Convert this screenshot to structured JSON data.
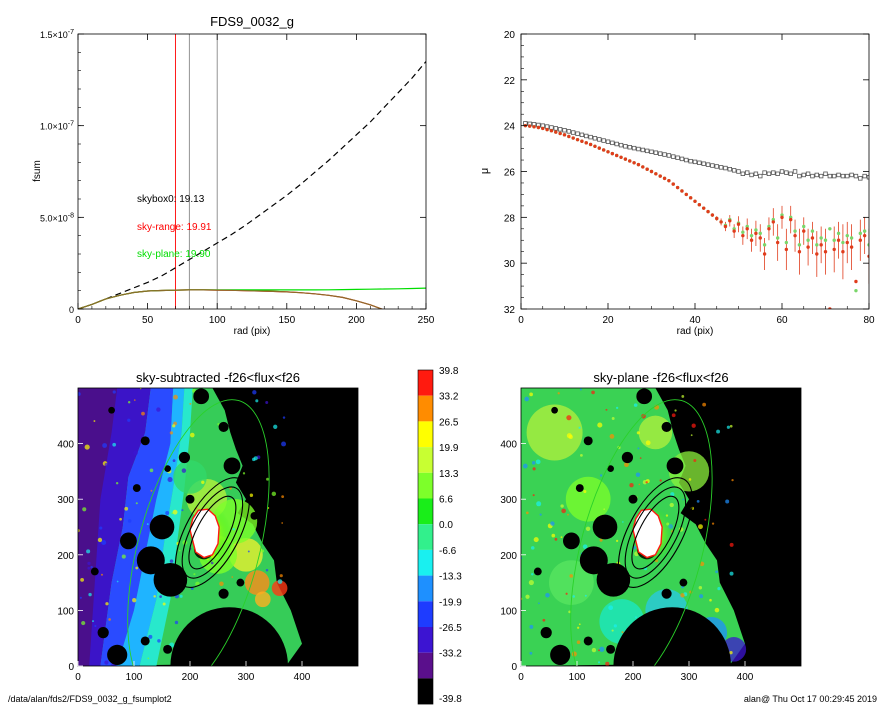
{
  "chart_data": [
    {
      "type": "line",
      "title": "FDS9_0032_g",
      "xlabel": "rad (pix)",
      "ylabel": "fsum",
      "xlim": [
        0,
        250
      ],
      "ylim": [
        0,
        1.5e-07
      ],
      "x_ticks": [
        "0",
        "50",
        "100",
        "150",
        "200",
        "250"
      ],
      "y_ticks": [
        {
          "label": "0",
          "value": 0
        },
        {
          "label": "5.0×10",
          "exp": "-8",
          "value": 5e-08
        },
        {
          "label": "1.0×10",
          "exp": "-7",
          "value": 1e-07
        },
        {
          "label": "1.5×10",
          "exp": "-7",
          "value": 1.5e-07
        }
      ],
      "annotations": [
        {
          "text": "skybox0: 19.13",
          "color": "#000000"
        },
        {
          "text": "sky-range: 19.91",
          "color": "#ff0000"
        },
        {
          "text": "sky-plane: 19.90",
          "color": "#00dd00"
        }
      ],
      "vertical_lines": [
        {
          "x": 70,
          "color": "#ff0000"
        },
        {
          "x": 80,
          "color": "#888888"
        },
        {
          "x": 100,
          "color": "#888888"
        }
      ],
      "series": [
        {
          "style": "dashed",
          "color": "#000000",
          "x": [
            0,
            10,
            20,
            30,
            40,
            50,
            60,
            70,
            80,
            90,
            100,
            110,
            120,
            130,
            140,
            150,
            160,
            170,
            180,
            190,
            200,
            210,
            220,
            230,
            240,
            250
          ],
          "y": [
            0,
            2.5e-09,
            5.5e-09,
            8.5e-09,
            1.15e-08,
            1.45e-08,
            1.8e-08,
            2.25e-08,
            2.7e-08,
            3.15e-08,
            3.6e-08,
            4.05e-08,
            4.55e-08,
            5.1e-08,
            5.65e-08,
            6.2e-08,
            6.8e-08,
            7.45e-08,
            8.1e-08,
            8.8e-08,
            9.5e-08,
            1.02e-07,
            1.1e-07,
            1.18e-07,
            1.26e-07,
            1.35e-07
          ]
        },
        {
          "style": "solid",
          "color": "#ff0000",
          "x": [
            0,
            10,
            20,
            30,
            40,
            50,
            60,
            70,
            80,
            90,
            100,
            110,
            120,
            130,
            140,
            150,
            160,
            170,
            180,
            190,
            200,
            210,
            220,
            225,
            230
          ],
          "y": [
            0,
            2.5e-09,
            5.5e-09,
            7.5e-09,
            9e-09,
            9.8e-09,
            1.01e-08,
            1.03e-08,
            1.04e-08,
            1.04e-08,
            1.03e-08,
            1.02e-08,
            1e-08,
            9.8e-09,
            9.6e-09,
            9.3e-09,
            8.9e-09,
            8.3e-09,
            7.5e-09,
            6.3e-09,
            4.5e-09,
            2.3e-09,
            -5e-10,
            -2.5e-09,
            -4.5e-09
          ]
        },
        {
          "style": "solid",
          "color": "#00dd00",
          "x": [
            0,
            10,
            20,
            30,
            40,
            50,
            60,
            70,
            80,
            90,
            100,
            110,
            120,
            130,
            140,
            150,
            160,
            170,
            180,
            190,
            200,
            210,
            220,
            230,
            240,
            250
          ],
          "y": [
            0,
            2.5e-09,
            5.5e-09,
            7.5e-09,
            9e-09,
            9.8e-09,
            1.01e-08,
            1.03e-08,
            1.04e-08,
            1.04e-08,
            1.04e-08,
            1.04e-08,
            1.04e-08,
            1.04e-08,
            1.04e-08,
            1.04e-08,
            1.04e-08,
            1.04e-08,
            1.05e-08,
            1.06e-08,
            1.07e-08,
            1.08e-08,
            1.09e-08,
            1.1e-08,
            1.12e-08,
            1.14e-08
          ]
        },
        {
          "style": "solid",
          "color": "#8b6d2a",
          "x": [
            0,
            10,
            20,
            30,
            40,
            50,
            60,
            70,
            80,
            90,
            100,
            110,
            120,
            130,
            140,
            150,
            160,
            170,
            180,
            190,
            200,
            210,
            220,
            225,
            230
          ],
          "y": [
            0,
            2.5e-09,
            5.5e-09,
            7.5e-09,
            9e-09,
            9.8e-09,
            1.01e-08,
            1.03e-08,
            1.04e-08,
            1.04e-08,
            1.03e-08,
            1.02e-08,
            1e-08,
            9.8e-09,
            9.6e-09,
            9.3e-09,
            8.9e-09,
            8.3e-09,
            7.5e-09,
            6.3e-09,
            4.5e-09,
            2.3e-09,
            -5e-10,
            -2.5e-09,
            -4.5e-09
          ]
        }
      ]
    },
    {
      "type": "scatter",
      "xlabel": "rad (pix)",
      "ylabel": "μ",
      "xlim": [
        0,
        80
      ],
      "ylim": [
        32,
        20
      ],
      "x_ticks": [
        "0",
        "20",
        "40",
        "60",
        "80"
      ],
      "y_ticks": [
        "20",
        "22",
        "24",
        "26",
        "28",
        "30",
        "32"
      ],
      "series": [
        {
          "marker": "open-square",
          "color": "#555555",
          "x": [
            1,
            2,
            3,
            4,
            5,
            6,
            7,
            8,
            9,
            10,
            11,
            12,
            13,
            14,
            15,
            16,
            17,
            18,
            19,
            20,
            21,
            22,
            23,
            24,
            25,
            26,
            27,
            28,
            29,
            30,
            31,
            32,
            33,
            34,
            35,
            36,
            37,
            38,
            39,
            40,
            41,
            42,
            43,
            44,
            45,
            46,
            47,
            48,
            49,
            50,
            51,
            52,
            53,
            54,
            55,
            56,
            57,
            58,
            59,
            60,
            61,
            62,
            63,
            64,
            65,
            66,
            67,
            68,
            69,
            70,
            71,
            72,
            73,
            74,
            75,
            76,
            77,
            78,
            79,
            80
          ],
          "y": [
            23.9,
            23.92,
            23.94,
            23.97,
            24.0,
            24.04,
            24.08,
            24.12,
            24.16,
            24.2,
            24.25,
            24.3,
            24.35,
            24.4,
            24.45,
            24.5,
            24.55,
            24.6,
            24.65,
            24.7,
            24.75,
            24.8,
            24.85,
            24.9,
            24.94,
            24.98,
            25.02,
            25.06,
            25.1,
            25.14,
            25.18,
            25.22,
            25.26,
            25.3,
            25.35,
            25.4,
            25.45,
            25.5,
            25.55,
            25.58,
            25.62,
            25.66,
            25.7,
            25.74,
            25.78,
            25.82,
            25.85,
            25.9,
            25.95,
            26.0,
            26.1,
            26.05,
            26.15,
            26.1,
            26.2,
            26.05,
            26.1,
            26.05,
            26.1,
            26.0,
            26.05,
            26.1,
            26.0,
            26.2,
            26.15,
            26.1,
            26.2,
            26.15,
            26.2,
            26.1,
            26.2,
            26.2,
            26.15,
            26.2,
            26.2,
            26.15,
            26.2,
            26.3,
            26.2,
            26.25
          ]
        },
        {
          "marker": "filled-circle",
          "color": "#e03c1c",
          "x": [
            1,
            2,
            3,
            4,
            5,
            6,
            7,
            8,
            9,
            10,
            11,
            12,
            13,
            14,
            15,
            16,
            17,
            18,
            19,
            20,
            21,
            22,
            23,
            24,
            25,
            26,
            27,
            28,
            29,
            30,
            31,
            32,
            33,
            34,
            35,
            36,
            37,
            38,
            39,
            40,
            41,
            42,
            43,
            44,
            45,
            46,
            47,
            48,
            49,
            50,
            51,
            52,
            53,
            54,
            55,
            56,
            57,
            58,
            59,
            60,
            61,
            62,
            63,
            64,
            65,
            66,
            67,
            68,
            69,
            70,
            71,
            72,
            73,
            74,
            75,
            76,
            77,
            78,
            79,
            80
          ],
          "y": [
            24.0,
            24.02,
            24.05,
            24.08,
            24.12,
            24.17,
            24.22,
            24.28,
            24.34,
            24.4,
            24.47,
            24.54,
            24.61,
            24.68,
            24.75,
            24.82,
            24.9,
            24.98,
            25.06,
            25.14,
            25.22,
            25.3,
            25.38,
            25.46,
            25.54,
            25.62,
            25.7,
            25.8,
            25.9,
            26.0,
            26.1,
            26.2,
            26.3,
            26.4,
            26.55,
            26.7,
            26.85,
            27.0,
            27.15,
            27.3,
            27.45,
            27.6,
            27.75,
            27.9,
            28.05,
            28.2,
            28.4,
            28.15,
            28.6,
            28.3,
            28.8,
            28.5,
            29.0,
            28.7,
            28.9,
            29.6,
            28.5,
            28.2,
            29.1,
            28.0,
            29.4,
            28.1,
            28.8,
            29.5,
            28.6,
            29.3,
            28.9,
            29.6,
            29.2,
            29.5,
            32.0,
            29.4,
            29.0,
            29.5,
            29.1,
            29.3,
            30.8,
            29.0,
            28.8,
            29.7
          ],
          "errors": [
            0,
            0,
            0,
            0,
            0,
            0,
            0,
            0,
            0,
            0,
            0,
            0,
            0,
            0,
            0,
            0,
            0,
            0,
            0,
            0,
            0,
            0,
            0,
            0,
            0,
            0,
            0,
            0,
            0,
            0,
            0,
            0,
            0,
            0,
            0,
            0,
            0,
            0,
            0,
            0,
            0,
            0,
            0.05,
            0.08,
            0.1,
            0.15,
            0.2,
            0.25,
            0.3,
            0.35,
            0.4,
            0.45,
            0.5,
            0.55,
            0.6,
            0.7,
            0.5,
            0.6,
            0.8,
            0.5,
            0.9,
            0.6,
            0.7,
            1.0,
            0.6,
            0.8,
            0.7,
            1.0,
            0.8,
            1.0,
            0.0,
            1.0,
            0.8,
            1.2,
            0.9,
            1.0,
            0.0,
            0.9,
            0.8,
            1.2
          ]
        },
        {
          "marker": "filled-circle",
          "color": "#7ad66a",
          "x": [
            1,
            2,
            3,
            4,
            5,
            6,
            7,
            8,
            9,
            10,
            11,
            12,
            13,
            14,
            15,
            16,
            17,
            18,
            19,
            20,
            21,
            22,
            23,
            24,
            25,
            26,
            27,
            28,
            29,
            30,
            31,
            32,
            33,
            34,
            35,
            36,
            37,
            38,
            39,
            40,
            41,
            42,
            43,
            44,
            45,
            46,
            47,
            48,
            49,
            50,
            51,
            52,
            53,
            54,
            55,
            56,
            57,
            58,
            59,
            60,
            61,
            62,
            63,
            64,
            65,
            66,
            67,
            68,
            69,
            70,
            71,
            72,
            73,
            74,
            75,
            76,
            77,
            78,
            79,
            80
          ],
          "y": [
            24.0,
            24.02,
            24.05,
            24.08,
            24.12,
            24.17,
            24.22,
            24.28,
            24.34,
            24.4,
            24.47,
            24.54,
            24.61,
            24.68,
            24.75,
            24.82,
            24.9,
            24.98,
            25.06,
            25.14,
            25.22,
            25.3,
            25.38,
            25.46,
            25.54,
            25.62,
            25.7,
            25.8,
            25.9,
            26.0,
            26.1,
            26.2,
            26.3,
            26.4,
            26.55,
            26.7,
            26.85,
            27.0,
            27.15,
            27.3,
            27.45,
            27.6,
            27.75,
            27.9,
            28.05,
            28.2,
            28.35,
            28.1,
            28.5,
            28.25,
            28.65,
            28.4,
            28.8,
            28.55,
            28.7,
            29.2,
            28.4,
            28.1,
            28.9,
            27.9,
            29.1,
            28.0,
            28.6,
            29.2,
            28.4,
            29.0,
            28.6,
            29.2,
            28.9,
            29.0,
            28.5,
            29.0,
            28.7,
            29.1,
            28.8,
            28.9,
            31.2,
            28.7,
            28.6,
            29.2
          ]
        }
      ]
    },
    {
      "type": "heatmap",
      "title": "sky-subtracted -f26<flux<f26",
      "xlim": [
        0,
        500
      ],
      "ylim": [
        0,
        500
      ],
      "x_ticks": [
        "0",
        "100",
        "200",
        "300",
        "400"
      ],
      "y_ticks": [
        "0",
        "100",
        "200",
        "300",
        "400"
      ],
      "colorbar": [
        "39.8",
        "33.2",
        "26.5",
        "19.9",
        "13.3",
        "6.6",
        "0.0",
        "-6.6",
        "-13.3",
        "-19.9",
        "-26.5",
        "-33.2",
        "-39.8"
      ],
      "colorbar_colors": [
        "#ff1a0f",
        "#ff8c00",
        "#ffff00",
        "#c8ff32",
        "#7dff2a",
        "#19ee19",
        "#32f08c",
        "#19f0f0",
        "#1e90ff",
        "#1e3cff",
        "#3c14d2",
        "#5a0f8c",
        "#000000"
      ]
    },
    {
      "type": "heatmap",
      "title": "sky-plane -f26<flux<f26",
      "xlim": [
        0,
        500
      ],
      "ylim": [
        0,
        500
      ],
      "x_ticks": [
        "0",
        "100",
        "200",
        "300",
        "400"
      ],
      "y_ticks": [
        "0",
        "100",
        "200",
        "300",
        "400"
      ]
    }
  ],
  "footer": {
    "path": "/data/alan/fds2/FDS9_0032_g_fsumplot2",
    "stamp": "alan@  Thu Oct 17 00:29:45 2019"
  }
}
